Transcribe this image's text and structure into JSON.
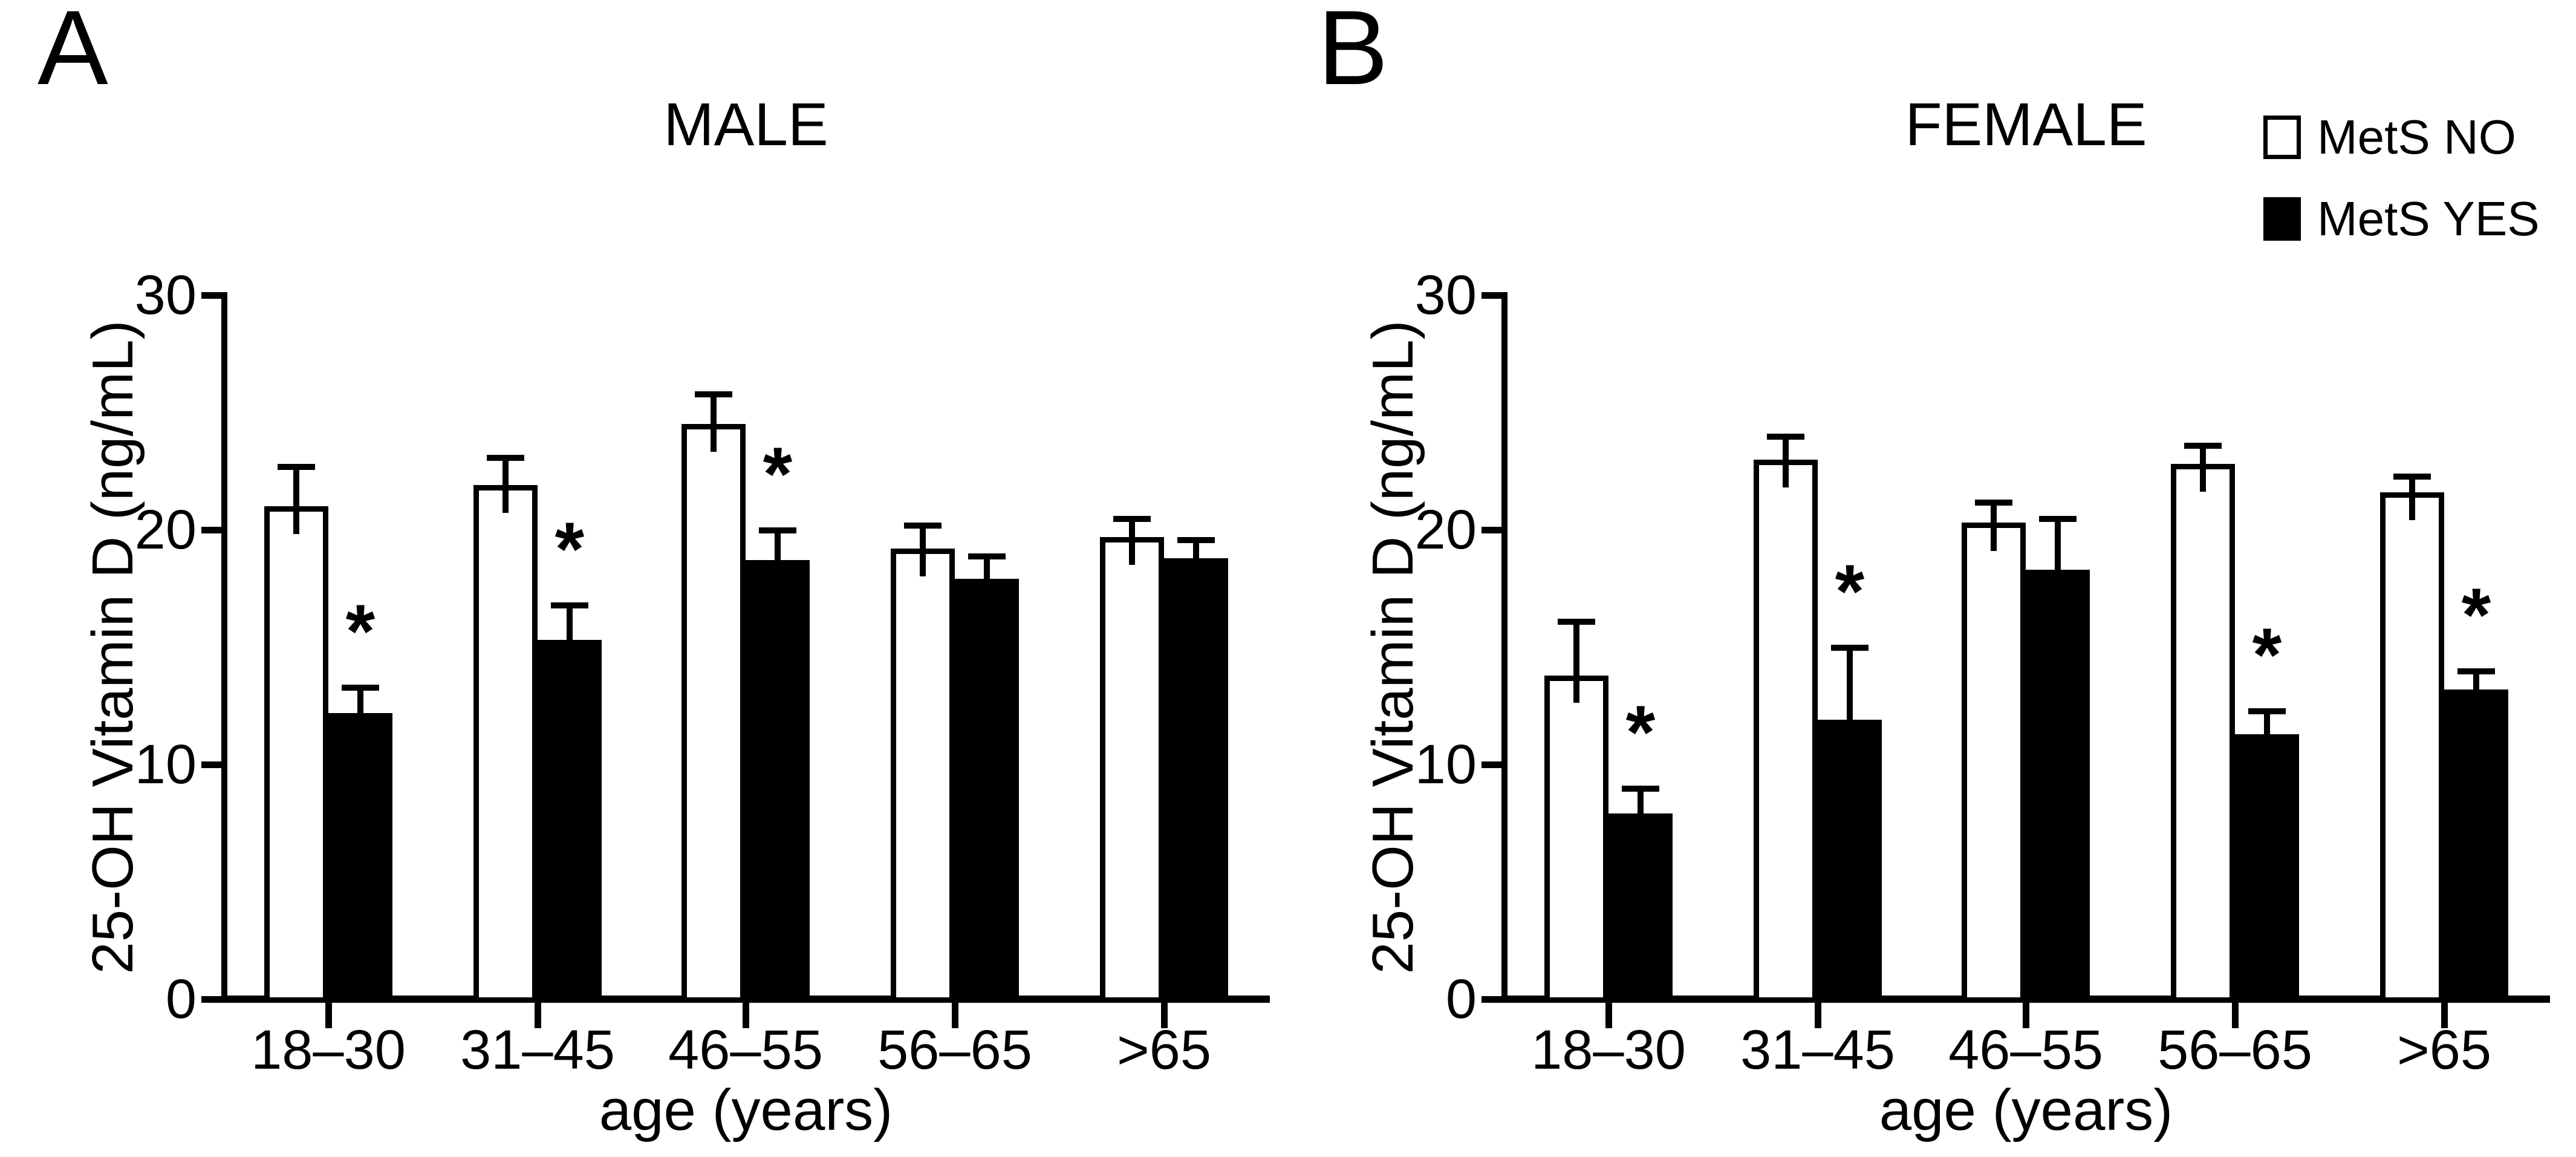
{
  "legend": {
    "items": [
      {
        "label": "MetS NO",
        "fill": "#ffffff"
      },
      {
        "label": "MetS YES",
        "fill": "#000000"
      }
    ]
  },
  "colors": {
    "ink": "#000000",
    "background": "#ffffff"
  },
  "chart_data": [
    {
      "type": "bar",
      "panel_label": "A",
      "title": "MALE",
      "xlabel": "age (years)",
      "ylabel": "25-OH Vitamin D (ng/mL)",
      "ylim": [
        0,
        30
      ],
      "yticks": [
        0,
        10,
        20,
        30
      ],
      "grid": false,
      "sig_marker": "*",
      "categories": [
        "18–30",
        "31–45",
        "46–55",
        "56–65",
        ">65"
      ],
      "series": [
        {
          "name": "MetS NO",
          "fill": "#ffffff",
          "values": [
            21.0,
            21.9,
            24.5,
            19.2,
            19.7
          ],
          "errors": [
            1.8,
            1.3,
            1.4,
            1.1,
            0.9
          ],
          "significant": [
            false,
            false,
            false,
            false,
            false
          ]
        },
        {
          "name": "MetS YES",
          "fill": "#000000",
          "values": [
            12.2,
            15.3,
            18.7,
            17.9,
            18.8
          ],
          "errors": [
            1.2,
            1.6,
            1.4,
            1.1,
            0.9
          ],
          "significant": [
            true,
            true,
            true,
            false,
            false
          ]
        }
      ]
    },
    {
      "type": "bar",
      "panel_label": "B",
      "title": "FEMALE",
      "xlabel": "age (years)",
      "ylabel": "25-OH Vitamin D (ng/mL)",
      "ylim": [
        0,
        30
      ],
      "yticks": [
        0,
        10,
        20,
        30
      ],
      "grid": false,
      "sig_marker": "*",
      "categories": [
        "18–30",
        "31–45",
        "46–55",
        "56–65",
        ">65"
      ],
      "series": [
        {
          "name": "MetS NO",
          "fill": "#ffffff",
          "values": [
            13.8,
            23.0,
            20.3,
            22.8,
            21.6
          ],
          "errors": [
            2.4,
            1.1,
            1.0,
            0.9,
            0.8
          ],
          "significant": [
            false,
            false,
            false,
            false,
            false
          ]
        },
        {
          "name": "MetS YES",
          "fill": "#000000",
          "values": [
            7.9,
            11.9,
            18.3,
            11.3,
            13.2
          ],
          "errors": [
            1.2,
            3.2,
            2.3,
            1.1,
            0.9
          ],
          "significant": [
            true,
            true,
            false,
            true,
            true
          ]
        }
      ]
    }
  ]
}
